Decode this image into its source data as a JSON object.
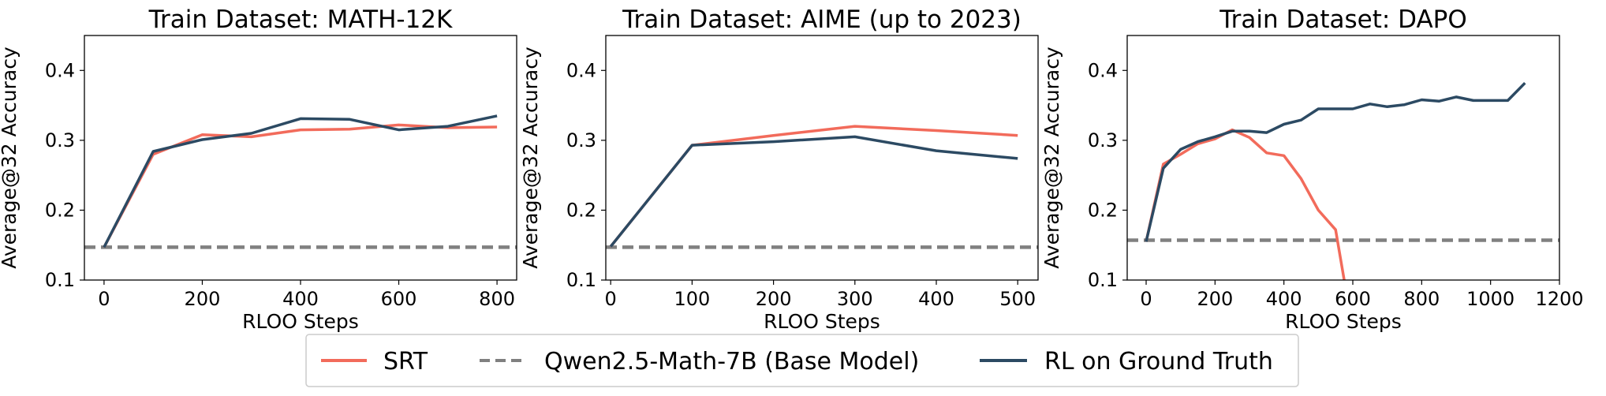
{
  "chart_data": [
    {
      "type": "line",
      "title": "Train Dataset: MATH-12K",
      "xlabel": "RLOO Steps",
      "ylabel": "Average@32 Accuracy",
      "xlim": [
        -40,
        840
      ],
      "ylim": [
        0.1,
        0.45
      ],
      "xticks": [
        0,
        200,
        400,
        600,
        800
      ],
      "yticks": [
        0.1,
        0.2,
        0.3,
        0.4
      ],
      "grid": false,
      "series": [
        {
          "name": "SRT",
          "color": "#f26b5b",
          "style": "solid",
          "x": [
            0,
            100,
            200,
            300,
            400,
            500,
            600,
            700,
            800
          ],
          "y": [
            0.147,
            0.28,
            0.308,
            0.305,
            0.315,
            0.316,
            0.322,
            0.318,
            0.319
          ]
        },
        {
          "name": "RL on Ground Truth",
          "color": "#2c4a63",
          "style": "solid",
          "x": [
            0,
            100,
            200,
            300,
            400,
            500,
            600,
            700,
            800
          ],
          "y": [
            0.147,
            0.284,
            0.301,
            0.31,
            0.331,
            0.33,
            0.315,
            0.32,
            0.335
          ]
        },
        {
          "name": "Qwen2.5-Math-7B (Base Model)",
          "color": "#808080",
          "style": "dashed",
          "x": [
            -40,
            840
          ],
          "y": [
            0.147,
            0.147
          ]
        }
      ]
    },
    {
      "type": "line",
      "title": "Train Dataset: AIME (up to 2023)",
      "xlabel": "RLOO Steps",
      "ylabel": "Average@32 Accuracy",
      "xlim": [
        -6,
        525
      ],
      "ylim": [
        0.1,
        0.45
      ],
      "xticks": [
        0,
        100,
        200,
        300,
        400,
        500
      ],
      "yticks": [
        0.1,
        0.2,
        0.3,
        0.4
      ],
      "grid": false,
      "series": [
        {
          "name": "SRT",
          "color": "#f26b5b",
          "style": "solid",
          "x": [
            0,
            100,
            200,
            300,
            400,
            500
          ],
          "y": [
            0.148,
            0.293,
            0.307,
            0.32,
            0.314,
            0.307
          ]
        },
        {
          "name": "RL on Ground Truth",
          "color": "#2c4a63",
          "style": "solid",
          "x": [
            0,
            100,
            200,
            300,
            400,
            500
          ],
          "y": [
            0.148,
            0.293,
            0.298,
            0.305,
            0.285,
            0.274
          ]
        },
        {
          "name": "Qwen2.5-Math-7B (Base Model)",
          "color": "#808080",
          "style": "dashed",
          "x": [
            -6,
            525
          ],
          "y": [
            0.147,
            0.147
          ]
        }
      ]
    },
    {
      "type": "line",
      "title": "Train Dataset: DAPO",
      "xlabel": "RLOO Steps",
      "ylabel": "Average@32 Accuracy",
      "xlim": [
        -55,
        1200
      ],
      "ylim": [
        0.1,
        0.45
      ],
      "xticks": [
        0,
        200,
        400,
        600,
        800,
        1000,
        1200
      ],
      "yticks": [
        0.1,
        0.2,
        0.3,
        0.4
      ],
      "grid": false,
      "series": [
        {
          "name": "SRT",
          "color": "#f26b5b",
          "style": "solid",
          "x": [
            0,
            50,
            100,
            150,
            200,
            250,
            300,
            350,
            400,
            450,
            500,
            550,
            575
          ],
          "y": [
            0.155,
            0.266,
            0.28,
            0.295,
            0.302,
            0.315,
            0.304,
            0.282,
            0.278,
            0.245,
            0.2,
            0.172,
            0.1
          ]
        },
        {
          "name": "RL on Ground Truth",
          "color": "#2c4a63",
          "style": "solid",
          "x": [
            0,
            50,
            100,
            150,
            200,
            250,
            300,
            350,
            400,
            450,
            500,
            550,
            600,
            650,
            700,
            750,
            800,
            850,
            900,
            950,
            1000,
            1050,
            1100
          ],
          "y": [
            0.155,
            0.26,
            0.287,
            0.298,
            0.305,
            0.313,
            0.313,
            0.311,
            0.323,
            0.329,
            0.345,
            0.345,
            0.345,
            0.352,
            0.348,
            0.351,
            0.358,
            0.356,
            0.362,
            0.357,
            0.357,
            0.357,
            0.382
          ]
        },
        {
          "name": "Qwen2.5-Math-7B (Base Model)",
          "color": "#808080",
          "style": "dashed",
          "x": [
            -55,
            1200
          ],
          "y": [
            0.157,
            0.157
          ]
        }
      ]
    }
  ],
  "legend": {
    "placement": "bottom-center",
    "items": [
      {
        "label": "SRT",
        "color": "#f26b5b",
        "style": "solid"
      },
      {
        "label": "Qwen2.5-Math-7B (Base Model)",
        "color": "#808080",
        "style": "dashed"
      },
      {
        "label": "RL on Ground Truth",
        "color": "#2c4a63",
        "style": "solid"
      }
    ]
  }
}
